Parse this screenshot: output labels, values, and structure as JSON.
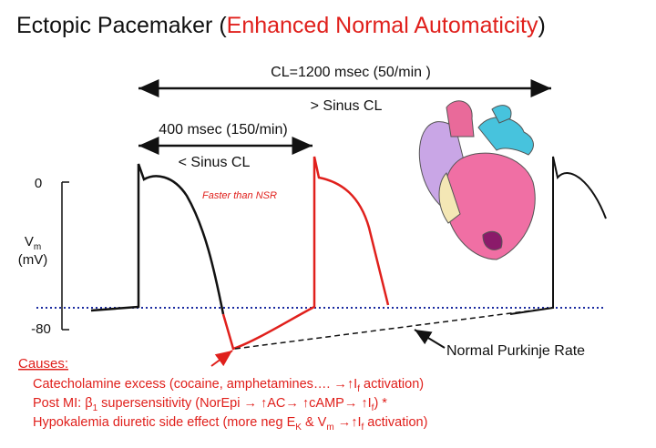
{
  "title": [
    "Ectopic Pacemaker (",
    "Enhanced Normal Automaticity",
    ")"
  ],
  "cycle_length": {
    "label": "CL=1200 msec (50/min )",
    "note": "> Sinus CL"
  },
  "ectopic_interval": {
    "label": "400 msec (150/min)",
    "note": "< Sinus CL"
  },
  "faster_note": "Faster than NSR",
  "axis": {
    "top": "0",
    "bottom": "-80",
    "symbol": "V",
    "symbol_sub": "m",
    "unit": "(mV)"
  },
  "purkinje_label": "Normal Purkinje Rate",
  "causes": {
    "heading": "Causes:",
    "lines": [
      [
        "Catecholamine excess (cocaine, amphetamines…. →↑I",
        "f",
        " activation)"
      ],
      [
        "Post MI: β",
        "1",
        " supersensitivity (NorEpi → ↑AC→ ↑cAMP→ ↑I",
        "f",
        ") *"
      ],
      [
        "Hypokalemia diuretic side effect (more neg E",
        "K",
        " & V",
        "m",
        " →↑I",
        "f",
        " activation)"
      ]
    ]
  }
}
